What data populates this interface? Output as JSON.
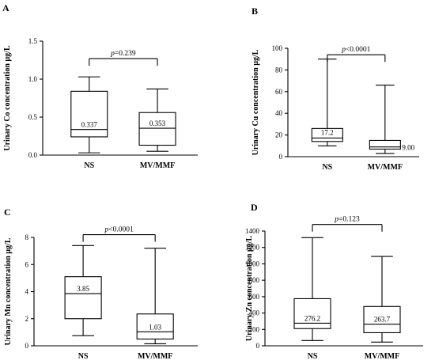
{
  "chart_data": [
    {
      "panel": "A",
      "type": "box",
      "ylabel": "Urinary Co concentration µg/L",
      "categories": [
        "NS",
        "MV/MMF"
      ],
      "ylim": [
        0,
        1.5
      ],
      "yticks": [
        "0.0",
        "0.5",
        "1.0",
        "1.5"
      ],
      "yticks_values": [
        0,
        0.5,
        1.0,
        1.5
      ],
      "boxes": [
        {
          "min": 0.03,
          "q1": 0.24,
          "median": 0.337,
          "q3": 0.84,
          "max": 1.03,
          "median_label": "0.337"
        },
        {
          "min": 0.05,
          "q1": 0.13,
          "median": 0.353,
          "q3": 0.56,
          "max": 0.87,
          "median_label": "0.353"
        }
      ],
      "significance": {
        "p_symbol": "p",
        "p_rest": "=0.239",
        "bracket_y": 1.27
      }
    },
    {
      "panel": "B",
      "type": "box",
      "ylabel": "Urinary Cu concentration µg/L",
      "categories": [
        "NS",
        "MV/MMF"
      ],
      "ylim": [
        0,
        100
      ],
      "yticks": [
        "0",
        "20",
        "40",
        "60",
        "80",
        "100"
      ],
      "yticks_values": [
        0,
        20,
        40,
        60,
        80,
        100
      ],
      "boxes": [
        {
          "min": 10,
          "q1": 14,
          "median": 17.2,
          "q3": 26,
          "max": 90,
          "median_label": "17.2"
        },
        {
          "min": 3,
          "q1": 7,
          "median": 9.0,
          "q3": 15,
          "max": 66,
          "median_label": "9.00"
        }
      ],
      "significance": {
        "p_symbol": "p",
        "p_rest": "<0.0001",
        "bracket_y": 94
      }
    },
    {
      "panel": "C",
      "type": "box",
      "ylabel": "Urinary Mn concentration µg/L",
      "categories": [
        "NS",
        "MV/MMF"
      ],
      "ylim": [
        0,
        8
      ],
      "yticks": [
        "0",
        "2",
        "4",
        "6",
        "8"
      ],
      "yticks_values": [
        0,
        2,
        4,
        6,
        8
      ],
      "boxes": [
        {
          "min": 0.75,
          "q1": 2.0,
          "median": 3.85,
          "q3": 5.1,
          "max": 7.4,
          "median_label": "3.85"
        },
        {
          "min": 0.15,
          "q1": 0.5,
          "median": 1.03,
          "q3": 2.35,
          "max": 7.2,
          "median_label": "1.03"
        }
      ],
      "significance": {
        "p_symbol": "p",
        "p_rest": "<0.0001",
        "bracket_y": 8.2
      }
    },
    {
      "panel": "D",
      "type": "box",
      "ylabel": "Urinary Zn concentration µg/L",
      "categories": [
        "NS",
        "MV/MMF"
      ],
      "ylim": [
        0,
        1400
      ],
      "yticks": [
        "0",
        "200",
        "400",
        "600",
        "800",
        "1000",
        "1200",
        "1400"
      ],
      "yticks_values": [
        0,
        200,
        400,
        600,
        800,
        1000,
        1200,
        1400
      ],
      "boxes": [
        {
          "min": 65,
          "q1": 210,
          "median": 276.2,
          "q3": 575,
          "max": 1320,
          "median_label": "276.2"
        },
        {
          "min": 45,
          "q1": 160,
          "median": 263.7,
          "q3": 480,
          "max": 1090,
          "median_label": "263.7"
        }
      ],
      "significance": {
        "p_symbol": "p",
        "p_rest": "=0.123",
        "bracket_y": 1480
      }
    }
  ]
}
